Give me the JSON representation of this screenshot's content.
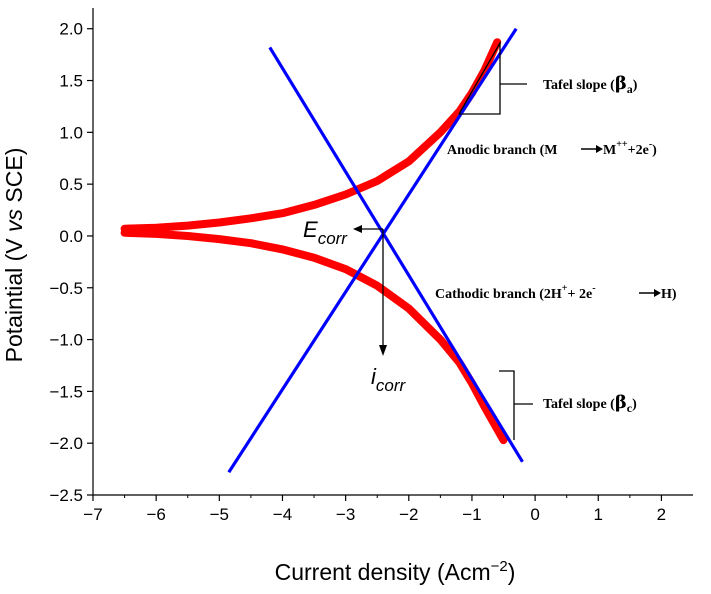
{
  "chart_data": {
    "type": "line",
    "title": "",
    "xlabel": "Current density (Acm",
    "xlabel_sup": "−2",
    "xlabel_close": ")",
    "ylabel": "Potaintial (V vs SCE)",
    "xlim": [
      -7,
      2.5
    ],
    "ylim": [
      -2.5,
      2.2
    ],
    "x_ticks": [
      -7,
      -6,
      -5,
      -4,
      -3,
      -2,
      -1,
      0,
      1,
      2
    ],
    "x_tick_labels": [
      "−7",
      "−6",
      "−5",
      "−4",
      "−3",
      "−2",
      "−1",
      "0",
      "1",
      "2"
    ],
    "y_ticks": [
      2.0,
      1.5,
      1.0,
      0.5,
      0.0,
      -0.5,
      -1.0,
      -1.5,
      -2.0,
      -2.5
    ],
    "y_tick_labels": [
      "2.0",
      "1.5",
      "1.0",
      "0.5",
      "0.0",
      "−0.5",
      "−1.0",
      "−1.5",
      "−2.0",
      "−2.5"
    ],
    "grid": false,
    "series": [
      {
        "role": "anodic",
        "color": "#ff0000",
        "x": [
          -6.5,
          -6.0,
          -5.5,
          -5.0,
          -4.5,
          -4.0,
          -3.5,
          -3.0,
          -2.5,
          -2.0,
          -1.5,
          -1.2,
          -1.0,
          -0.8,
          -0.6
        ],
        "y": [
          0.07,
          0.08,
          0.1,
          0.13,
          0.17,
          0.22,
          0.3,
          0.4,
          0.53,
          0.72,
          1.0,
          1.2,
          1.38,
          1.6,
          1.87
        ]
      },
      {
        "role": "cathodic",
        "color": "#ff0000",
        "x": [
          -6.5,
          -6.0,
          -5.5,
          -5.0,
          -4.5,
          -4.0,
          -3.5,
          -3.0,
          -2.5,
          -2.0,
          -1.5,
          -1.2,
          -1.0,
          -0.8,
          -0.5
        ],
        "y": [
          0.03,
          0.02,
          0.0,
          -0.03,
          -0.07,
          -0.13,
          -0.21,
          -0.32,
          -0.48,
          -0.7,
          -1.0,
          -1.22,
          -1.42,
          -1.65,
          -1.97
        ]
      },
      {
        "role": "anodic-tafel",
        "color": "#0000ff",
        "x": [
          -4.85,
          -0.3
        ],
        "y": [
          -2.28,
          2.0
        ]
      },
      {
        "role": "cathodic-tafel",
        "color": "#0000ff",
        "x": [
          -4.2,
          -0.2
        ],
        "y": [
          1.82,
          -2.18
        ]
      }
    ],
    "annotations": {
      "tafel_a": {
        "label": "Tafel slope (",
        "greek": "β",
        "sub": "a",
        "close": ")"
      },
      "anodic": {
        "label": "Anodic branch (M",
        "mid": " M",
        "sup": "++",
        "tail": "+2e",
        "sup2": "-",
        "close": ")"
      },
      "cathodic": {
        "label": "Cathodic branch (2H",
        "sup": "+",
        "mid": "+ 2e",
        "sup2": "-",
        "close": "H)"
      },
      "tafel_c": {
        "label": "Tafel slope (",
        "greek": "β",
        "sub": "c",
        "close": ")"
      },
      "ecorr": {
        "main": "E",
        "sub": "corr"
      },
      "icorr": {
        "main": "i",
        "sub": "corr"
      }
    }
  }
}
